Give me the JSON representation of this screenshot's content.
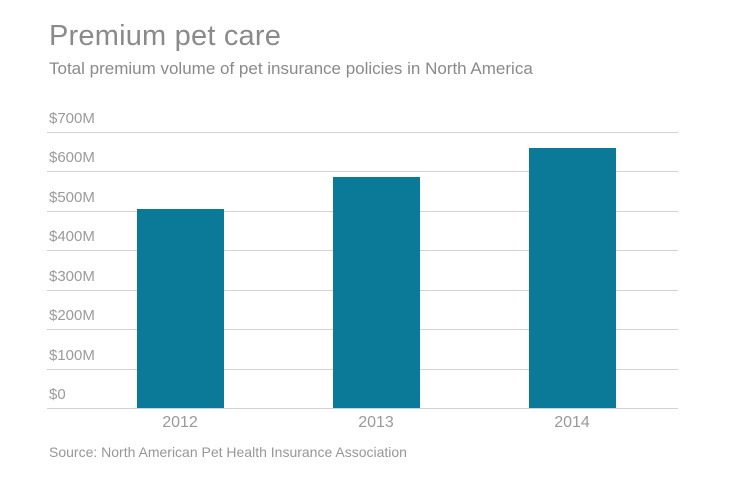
{
  "header": {
    "title": "Premium pet care",
    "subtitle": "Total premium volume of pet insurance policies in North America"
  },
  "chart_data": {
    "type": "bar",
    "title": "Premium pet care",
    "subtitle": "Total premium volume of pet insurance policies in North America",
    "categories": [
      "2012",
      "2013",
      "2014"
    ],
    "values": [
      505,
      585,
      660
    ],
    "unit": "USD millions",
    "xlabel": "",
    "ylabel": "",
    "ylim": [
      0,
      700
    ],
    "yticks": [
      {
        "label": "$700M",
        "value": 700
      },
      {
        "label": "$600M",
        "value": 600
      },
      {
        "label": "$500M",
        "value": 500
      },
      {
        "label": "$400M",
        "value": 400
      },
      {
        "label": "$300M",
        "value": 300
      },
      {
        "label": "$200M",
        "value": 200
      },
      {
        "label": "$100M",
        "value": 100
      },
      {
        "label": "$0",
        "value": 0
      }
    ],
    "grid": true,
    "legend": "none",
    "bar_color": "#0b7a99",
    "text_color": "#8a8a8a",
    "source": "Source: North American Pet Health Insurance Association"
  },
  "footer": {
    "source": "Source: North American Pet Health Insurance Association"
  }
}
